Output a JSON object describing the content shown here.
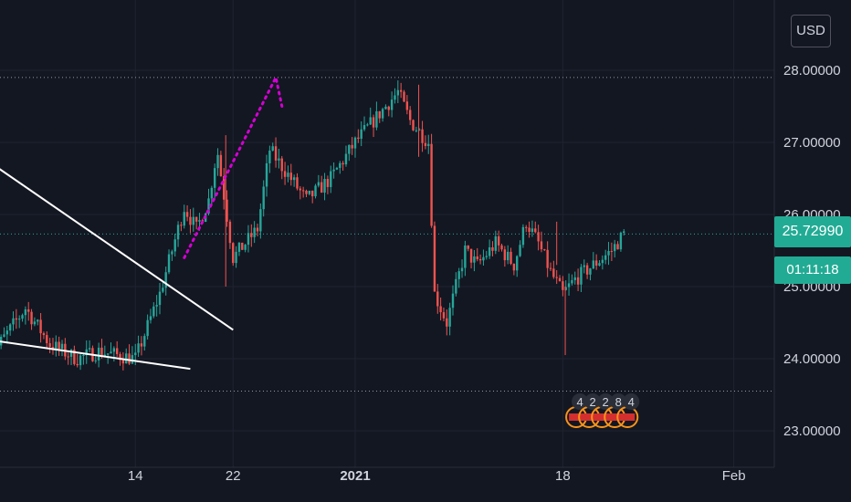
{
  "currency_button": {
    "label": "USD"
  },
  "price_tags": {
    "last_price": "25.72990",
    "countdown": "01:11:18"
  },
  "event_markers": [
    "4",
    "2",
    "2",
    "8",
    "4"
  ],
  "colors": {
    "background": "#131722",
    "up": "#26a69a",
    "down": "#ef5350",
    "grid": "#1f2330",
    "trendline": "#ffffff",
    "projection": "#d400d4",
    "last_price_line": "#26a69a"
  },
  "chart_data": {
    "type": "candlestick",
    "title": "",
    "xlabel": "",
    "ylabel": "",
    "y_ticks": [
      "23.00000",
      "24.00000",
      "25.00000",
      "26.00000",
      "27.00000",
      "28.00000"
    ],
    "x_ticks": [
      "14",
      "22",
      "2021",
      "18",
      "Feb"
    ],
    "ylim": [
      22.9,
      28.2
    ],
    "last_price": 25.7299,
    "dotted_levels": [
      27.9,
      23.55
    ],
    "grid": true,
    "annotations": {
      "upper_trendline": [
        [
          -40.0,
          27.9
        ],
        [
          -10.0,
          24.4
        ]
      ],
      "lower_trendline": [
        [
          -85.0,
          25.6
        ],
        [
          -13.5,
          23.86
        ]
      ],
      "projection": [
        [
          -14.0,
          25.4
        ],
        [
          -6.5,
          27.9
        ],
        [
          -6.0,
          27.5
        ]
      ]
    }
  }
}
